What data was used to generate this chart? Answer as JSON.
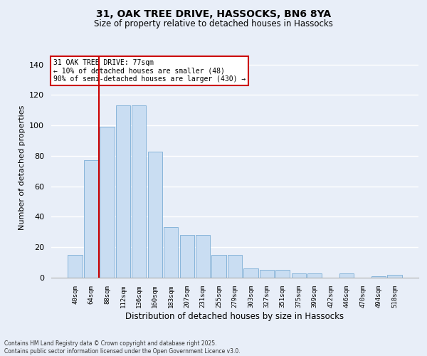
{
  "title_line1": "31, OAK TREE DRIVE, HASSOCKS, BN6 8YA",
  "title_line2": "Size of property relative to detached houses in Hassocks",
  "xlabel": "Distribution of detached houses by size in Hassocks",
  "ylabel": "Number of detached properties",
  "categories": [
    "40sqm",
    "64sqm",
    "88sqm",
    "112sqm",
    "136sqm",
    "160sqm",
    "183sqm",
    "207sqm",
    "231sqm",
    "255sqm",
    "279sqm",
    "303sqm",
    "327sqm",
    "351sqm",
    "375sqm",
    "399sqm",
    "422sqm",
    "446sqm",
    "470sqm",
    "494sqm",
    "518sqm"
  ],
  "values": [
    15,
    77,
    99,
    113,
    113,
    83,
    33,
    28,
    28,
    15,
    15,
    6,
    5,
    5,
    3,
    3,
    0,
    3,
    0,
    1,
    2
  ],
  "bar_color": "#c9ddf2",
  "bar_edge_color": "#7badd6",
  "background_color": "#e8eef8",
  "grid_color": "#ffffff",
  "vline_x": 1.5,
  "vline_color": "#cc0000",
  "annotation_text": "31 OAK TREE DRIVE: 77sqm\n← 10% of detached houses are smaller (48)\n90% of semi-detached houses are larger (430) →",
  "annotation_box_color": "#ffffff",
  "annotation_box_edge": "#cc0000",
  "footnote": "Contains HM Land Registry data © Crown copyright and database right 2025.\nContains public sector information licensed under the Open Government Licence v3.0.",
  "ylim": [
    0,
    145
  ],
  "yticks": [
    0,
    20,
    40,
    60,
    80,
    100,
    120,
    140
  ]
}
